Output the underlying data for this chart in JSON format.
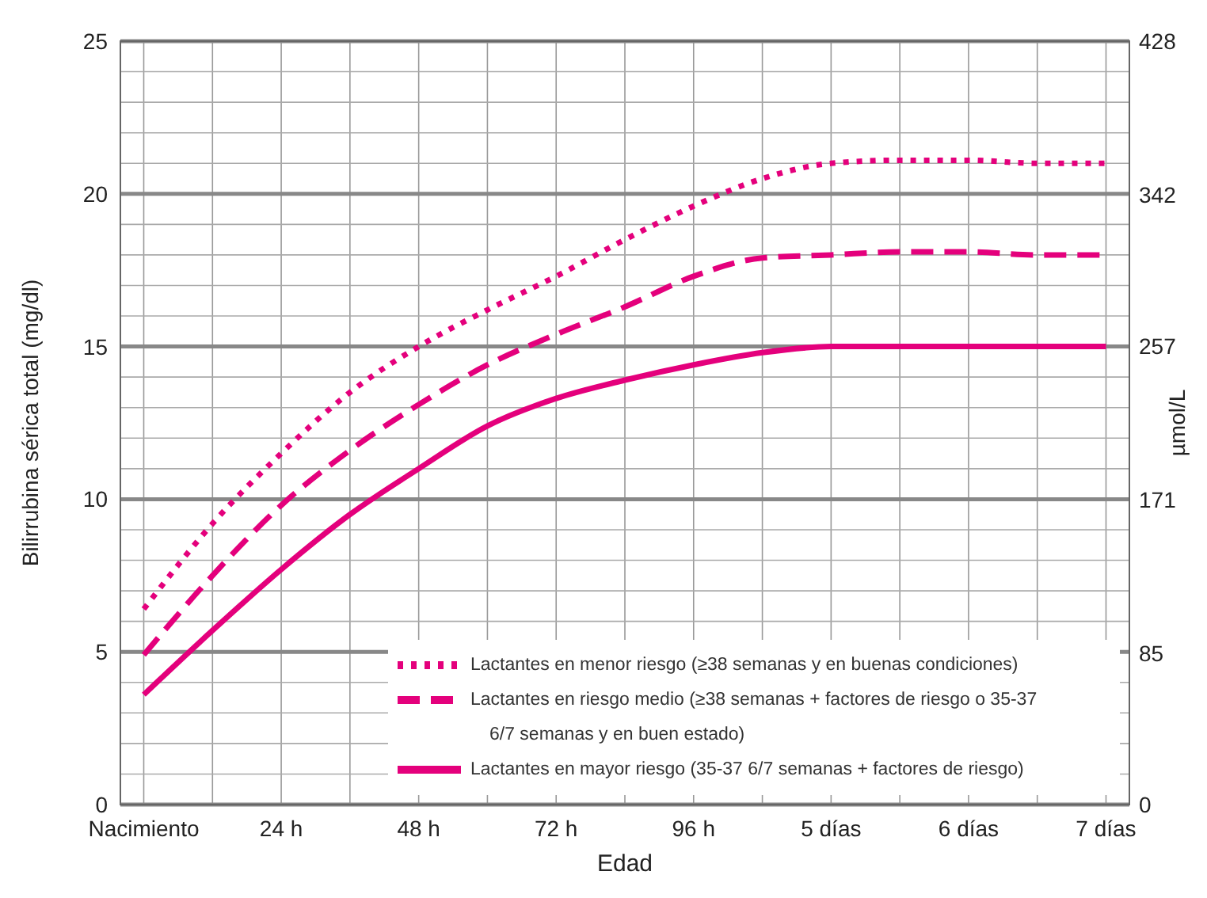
{
  "chart_data": {
    "type": "line",
    "xlabel": "Edad",
    "ylabel": "Bilirrubina sérica total (mg/dl)",
    "y2label": "µmol/L",
    "categories": [
      "Nacimiento",
      null,
      "24 h",
      null,
      "48 h",
      null,
      "72 h",
      null,
      "96 h",
      null,
      "5 días",
      null,
      "6 días",
      null,
      "7 días"
    ],
    "ylim": [
      0,
      25
    ],
    "y2lim": [
      0,
      428
    ],
    "yticks": [
      0,
      {
        "value": 1,
        "label": null
      },
      {
        "value": 2,
        "label": null
      },
      {
        "value": 3,
        "label": null
      },
      {
        "value": 4,
        "label": null
      },
      5,
      {
        "value": 6,
        "label": null
      },
      {
        "value": 7,
        "label": null
      },
      {
        "value": 8,
        "label": null
      },
      {
        "value": 9,
        "label": null
      },
      10,
      {
        "value": 11,
        "label": null
      },
      {
        "value": 12,
        "label": null
      },
      {
        "value": 13,
        "label": null
      },
      {
        "value": 14,
        "label": null
      },
      15,
      {
        "value": 16,
        "label": null
      },
      {
        "value": 17,
        "label": null
      },
      {
        "value": 18,
        "label": null
      },
      {
        "value": 19,
        "label": null
      },
      20,
      {
        "value": 21,
        "label": null
      },
      {
        "value": 22,
        "label": null
      },
      {
        "value": 23,
        "label": null
      },
      {
        "value": 24,
        "label": null
      },
      25
    ],
    "y2ticks": [
      0,
      85,
      171,
      257,
      342,
      428
    ],
    "grid": true,
    "legend": "bottom right",
    "series": [
      {
        "name": "Lactantes en menor riesgo (≥38 semanas y en buenas condiciones)",
        "color": "#e4007c",
        "line_style": "dotted",
        "values": [
          6.4,
          9.2,
          11.5,
          13.5,
          15.0,
          16.2,
          17.3,
          18.5,
          19.6,
          20.5,
          21.0,
          21.1,
          21.1,
          21.0,
          21.0
        ]
      },
      {
        "name": "Lactantes en riesgo medio (≥38 semanas + factores de riesgo o 35-37 6/7 semanas y en buen estado)",
        "color": "#e4007c",
        "line_style": "dashed",
        "values": [
          4.9,
          7.5,
          9.8,
          11.6,
          13.1,
          14.4,
          15.4,
          16.3,
          17.3,
          17.9,
          18.0,
          18.1,
          18.1,
          18.0,
          18.0
        ]
      },
      {
        "name": "Lactantes en mayor riesgo (35-37 6/7 semanas + factores de riesgo)",
        "color": "#e4007c",
        "line_style": "solid",
        "values": [
          3.6,
          5.7,
          7.7,
          9.5,
          11.0,
          12.4,
          13.3,
          13.9,
          14.4,
          14.8,
          15.0,
          15.0,
          15.0,
          15.0,
          15.0
        ]
      }
    ]
  }
}
